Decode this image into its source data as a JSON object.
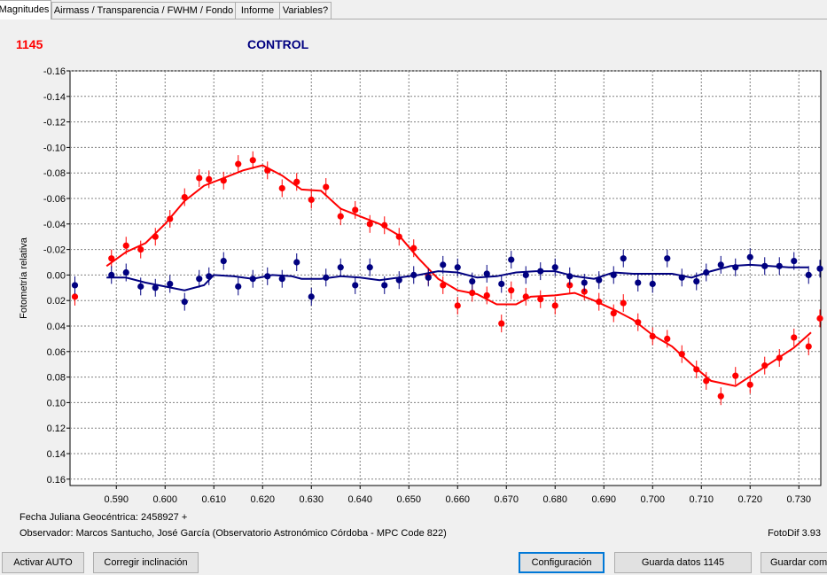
{
  "tabs": [
    {
      "label": "Magnitudes",
      "active": true
    },
    {
      "label": "Airmass / Transparencia / FWHM / Fondo",
      "active": false
    },
    {
      "label": "Informe",
      "active": false
    },
    {
      "label": "Variables?",
      "active": false
    }
  ],
  "chart": {
    "id_label": "1145",
    "title": "CONTROL",
    "ylabel": "Fotometría relativa",
    "footer_left": "Fecha Juliana Geocéntrica: 2458927 +",
    "observer": "Observador: Marcos Santucho, José García (Observatorio Astronómico Córdoba - MPC Code 822)",
    "version": "FotoDif 3.93"
  },
  "colors": {
    "red": "#ff0000",
    "navy": "#000080",
    "title": "#000080",
    "id": "#ff0000"
  },
  "chart_data": {
    "type": "scatter",
    "xlim": [
      0.5805,
      0.7345
    ],
    "ylim": [
      -0.16,
      0.165
    ],
    "y_inverted": true,
    "grid": true,
    "x_ticks": [
      0.59,
      0.6,
      0.61,
      0.62,
      0.63,
      0.64,
      0.65,
      0.66,
      0.67,
      0.68,
      0.69,
      0.7,
      0.71,
      0.72,
      0.73
    ],
    "x_tick_labels": [
      "0.590",
      "0.600",
      "0.610",
      "0.620",
      "0.630",
      "0.640",
      "0.650",
      "0.660",
      "0.670",
      "0.680",
      "0.690",
      "0.700",
      "0.710",
      "0.720",
      "0.730"
    ],
    "y_ticks": [
      -0.16,
      -0.14,
      -0.12,
      -0.1,
      -0.08,
      -0.06,
      -0.04,
      -0.02,
      0.0,
      0.02,
      0.04,
      0.06,
      0.08,
      0.1,
      0.12,
      0.14,
      0.16
    ],
    "y_tick_labels": [
      "-0.16",
      "-0.14",
      "-0.12",
      "-0.10",
      "-0.08",
      "-0.06",
      "-0.04",
      "-0.02",
      "0.00",
      "0.02",
      "0.04",
      "0.06",
      "0.08",
      "0.10",
      "0.12",
      "0.14",
      "0.16"
    ],
    "series": [
      {
        "color": "#ff0000",
        "points": [
          {
            "x": 0.5815,
            "y": 0.017
          },
          {
            "x": 0.589,
            "y": -0.013
          },
          {
            "x": 0.592,
            "y": -0.023
          },
          {
            "x": 0.595,
            "y": -0.02
          },
          {
            "x": 0.598,
            "y": -0.03
          },
          {
            "x": 0.601,
            "y": -0.044
          },
          {
            "x": 0.604,
            "y": -0.061
          },
          {
            "x": 0.607,
            "y": -0.076
          },
          {
            "x": 0.609,
            "y": -0.075
          },
          {
            "x": 0.612,
            "y": -0.074
          },
          {
            "x": 0.615,
            "y": -0.087
          },
          {
            "x": 0.618,
            "y": -0.09
          },
          {
            "x": 0.621,
            "y": -0.082
          },
          {
            "x": 0.624,
            "y": -0.068
          },
          {
            "x": 0.627,
            "y": -0.073
          },
          {
            "x": 0.63,
            "y": -0.059
          },
          {
            "x": 0.633,
            "y": -0.069
          },
          {
            "x": 0.636,
            "y": -0.046
          },
          {
            "x": 0.639,
            "y": -0.051
          },
          {
            "x": 0.642,
            "y": -0.04
          },
          {
            "x": 0.645,
            "y": -0.039
          },
          {
            "x": 0.648,
            "y": -0.03
          },
          {
            "x": 0.651,
            "y": -0.021
          },
          {
            "x": 0.654,
            "y": 0.001
          },
          {
            "x": 0.657,
            "y": 0.008
          },
          {
            "x": 0.66,
            "y": 0.024
          },
          {
            "x": 0.663,
            "y": 0.014
          },
          {
            "x": 0.666,
            "y": 0.016
          },
          {
            "x": 0.669,
            "y": 0.038
          },
          {
            "x": 0.671,
            "y": 0.012
          },
          {
            "x": 0.674,
            "y": 0.017
          },
          {
            "x": 0.677,
            "y": 0.019
          },
          {
            "x": 0.68,
            "y": 0.024
          },
          {
            "x": 0.683,
            "y": 0.008
          },
          {
            "x": 0.686,
            "y": 0.013
          },
          {
            "x": 0.689,
            "y": 0.021
          },
          {
            "x": 0.692,
            "y": 0.03
          },
          {
            "x": 0.694,
            "y": 0.022
          },
          {
            "x": 0.697,
            "y": 0.037
          },
          {
            "x": 0.7,
            "y": 0.048
          },
          {
            "x": 0.703,
            "y": 0.05
          },
          {
            "x": 0.706,
            "y": 0.062
          },
          {
            "x": 0.709,
            "y": 0.074
          },
          {
            "x": 0.711,
            "y": 0.083
          },
          {
            "x": 0.714,
            "y": 0.095
          },
          {
            "x": 0.717,
            "y": 0.079
          },
          {
            "x": 0.72,
            "y": 0.086
          },
          {
            "x": 0.723,
            "y": 0.071
          },
          {
            "x": 0.726,
            "y": 0.065
          },
          {
            "x": 0.729,
            "y": 0.049
          },
          {
            "x": 0.732,
            "y": 0.056
          },
          {
            "x": 0.7345,
            "y": 0.034
          }
        ],
        "fit": [
          {
            "x": 0.588,
            "y": -0.007
          },
          {
            "x": 0.592,
            "y": -0.018
          },
          {
            "x": 0.596,
            "y": -0.025
          },
          {
            "x": 0.6,
            "y": -0.04
          },
          {
            "x": 0.604,
            "y": -0.058
          },
          {
            "x": 0.608,
            "y": -0.07
          },
          {
            "x": 0.612,
            "y": -0.076
          },
          {
            "x": 0.616,
            "y": -0.082
          },
          {
            "x": 0.62,
            "y": -0.086
          },
          {
            "x": 0.624,
            "y": -0.078
          },
          {
            "x": 0.628,
            "y": -0.067
          },
          {
            "x": 0.632,
            "y": -0.066
          },
          {
            "x": 0.636,
            "y": -0.052
          },
          {
            "x": 0.64,
            "y": -0.046
          },
          {
            "x": 0.644,
            "y": -0.04
          },
          {
            "x": 0.648,
            "y": -0.031
          },
          {
            "x": 0.652,
            "y": -0.013
          },
          {
            "x": 0.656,
            "y": 0.003
          },
          {
            "x": 0.66,
            "y": 0.012
          },
          {
            "x": 0.664,
            "y": 0.015
          },
          {
            "x": 0.668,
            "y": 0.023
          },
          {
            "x": 0.672,
            "y": 0.023
          },
          {
            "x": 0.675,
            "y": 0.017
          },
          {
            "x": 0.68,
            "y": 0.016
          },
          {
            "x": 0.684,
            "y": 0.014
          },
          {
            "x": 0.688,
            "y": 0.02
          },
          {
            "x": 0.692,
            "y": 0.027
          },
          {
            "x": 0.696,
            "y": 0.035
          },
          {
            "x": 0.7,
            "y": 0.047
          },
          {
            "x": 0.704,
            "y": 0.056
          },
          {
            "x": 0.708,
            "y": 0.07
          },
          {
            "x": 0.712,
            "y": 0.083
          },
          {
            "x": 0.717,
            "y": 0.087
          },
          {
            "x": 0.721,
            "y": 0.077
          },
          {
            "x": 0.725,
            "y": 0.067
          },
          {
            "x": 0.729,
            "y": 0.057
          },
          {
            "x": 0.7325,
            "y": 0.045
          }
        ]
      },
      {
        "color": "#000080",
        "points": [
          {
            "x": 0.5815,
            "y": 0.008
          },
          {
            "x": 0.589,
            "y": 0.0
          },
          {
            "x": 0.592,
            "y": -0.002
          },
          {
            "x": 0.595,
            "y": 0.009
          },
          {
            "x": 0.598,
            "y": 0.01
          },
          {
            "x": 0.601,
            "y": 0.007
          },
          {
            "x": 0.604,
            "y": 0.021
          },
          {
            "x": 0.607,
            "y": 0.003
          },
          {
            "x": 0.609,
            "y": 0.001
          },
          {
            "x": 0.612,
            "y": -0.011
          },
          {
            "x": 0.615,
            "y": 0.009
          },
          {
            "x": 0.618,
            "y": 0.003
          },
          {
            "x": 0.621,
            "y": 0.001
          },
          {
            "x": 0.624,
            "y": 0.003
          },
          {
            "x": 0.627,
            "y": -0.01
          },
          {
            "x": 0.63,
            "y": 0.017
          },
          {
            "x": 0.633,
            "y": 0.002
          },
          {
            "x": 0.636,
            "y": -0.006
          },
          {
            "x": 0.639,
            "y": 0.008
          },
          {
            "x": 0.642,
            "y": -0.006
          },
          {
            "x": 0.645,
            "y": 0.008
          },
          {
            "x": 0.648,
            "y": 0.004
          },
          {
            "x": 0.651,
            "y": 0.0
          },
          {
            "x": 0.654,
            "y": 0.002
          },
          {
            "x": 0.657,
            "y": -0.008
          },
          {
            "x": 0.66,
            "y": -0.006
          },
          {
            "x": 0.663,
            "y": 0.005
          },
          {
            "x": 0.666,
            "y": -0.001
          },
          {
            "x": 0.669,
            "y": 0.007
          },
          {
            "x": 0.671,
            "y": -0.012
          },
          {
            "x": 0.674,
            "y": 0.0
          },
          {
            "x": 0.677,
            "y": -0.003
          },
          {
            "x": 0.68,
            "y": -0.006
          },
          {
            "x": 0.683,
            "y": 0.001
          },
          {
            "x": 0.686,
            "y": 0.006
          },
          {
            "x": 0.689,
            "y": 0.004
          },
          {
            "x": 0.692,
            "y": 0.0
          },
          {
            "x": 0.694,
            "y": -0.013
          },
          {
            "x": 0.697,
            "y": 0.006
          },
          {
            "x": 0.7,
            "y": 0.007
          },
          {
            "x": 0.703,
            "y": -0.013
          },
          {
            "x": 0.706,
            "y": 0.002
          },
          {
            "x": 0.709,
            "y": 0.005
          },
          {
            "x": 0.711,
            "y": -0.002
          },
          {
            "x": 0.714,
            "y": -0.008
          },
          {
            "x": 0.717,
            "y": -0.006
          },
          {
            "x": 0.72,
            "y": -0.014
          },
          {
            "x": 0.723,
            "y": -0.007
          },
          {
            "x": 0.726,
            "y": -0.007
          },
          {
            "x": 0.729,
            "y": -0.011
          },
          {
            "x": 0.732,
            "y": 0.0
          },
          {
            "x": 0.7345,
            "y": -0.005
          }
        ],
        "fit": [
          {
            "x": 0.588,
            "y": 0.002
          },
          {
            "x": 0.592,
            "y": 0.002
          },
          {
            "x": 0.596,
            "y": 0.006
          },
          {
            "x": 0.6,
            "y": 0.009
          },
          {
            "x": 0.604,
            "y": 0.012
          },
          {
            "x": 0.608,
            "y": 0.008
          },
          {
            "x": 0.61,
            "y": 0.0
          },
          {
            "x": 0.614,
            "y": 0.001
          },
          {
            "x": 0.618,
            "y": 0.003
          },
          {
            "x": 0.622,
            "y": 0.0
          },
          {
            "x": 0.626,
            "y": 0.001
          },
          {
            "x": 0.628,
            "y": 0.003
          },
          {
            "x": 0.632,
            "y": 0.003
          },
          {
            "x": 0.636,
            "y": 0.001
          },
          {
            "x": 0.64,
            "y": 0.002
          },
          {
            "x": 0.644,
            "y": 0.004
          },
          {
            "x": 0.648,
            "y": 0.002
          },
          {
            "x": 0.652,
            "y": 0.0
          },
          {
            "x": 0.656,
            "y": -0.003
          },
          {
            "x": 0.66,
            "y": -0.002
          },
          {
            "x": 0.664,
            "y": 0.002
          },
          {
            "x": 0.668,
            "y": 0.001
          },
          {
            "x": 0.672,
            "y": -0.002
          },
          {
            "x": 0.676,
            "y": -0.003
          },
          {
            "x": 0.68,
            "y": -0.003
          },
          {
            "x": 0.684,
            "y": 0.001
          },
          {
            "x": 0.688,
            "y": 0.003
          },
          {
            "x": 0.692,
            "y": -0.002
          },
          {
            "x": 0.696,
            "y": -0.001
          },
          {
            "x": 0.7,
            "y": -0.001
          },
          {
            "x": 0.704,
            "y": -0.001
          },
          {
            "x": 0.708,
            "y": 0.002
          },
          {
            "x": 0.712,
            "y": -0.003
          },
          {
            "x": 0.716,
            "y": -0.007
          },
          {
            "x": 0.72,
            "y": -0.008
          },
          {
            "x": 0.724,
            "y": -0.007
          },
          {
            "x": 0.728,
            "y": -0.006
          },
          {
            "x": 0.732,
            "y": -0.006
          }
        ]
      }
    ]
  },
  "buttons": [
    {
      "name": "activar-auto-button",
      "label": "Activar AUTO"
    },
    {
      "name": "corregir-inclinacion-button",
      "label": "Corregir inclinación"
    },
    {
      "name": "configuracion-button",
      "label": "Configuración"
    },
    {
      "name": "guarda-datos-button",
      "label": "Guarda datos 1145"
    },
    {
      "name": "guardar-como-button",
      "label": "Guardar como"
    }
  ]
}
